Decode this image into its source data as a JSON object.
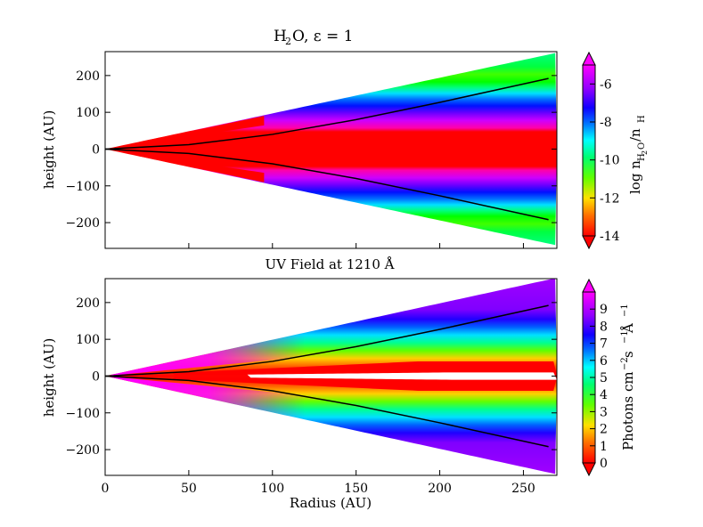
{
  "chart_data": [
    {
      "type": "heatmap",
      "title_main": "H",
      "title_sub": "2",
      "title_rest": "O, ε = 1",
      "xlabel": "",
      "ylabel": "height (AU)",
      "xlim": [
        0,
        270
      ],
      "ylim": [
        -270,
        265
      ],
      "yticks": [
        200,
        100,
        0,
        -100,
        -200
      ],
      "ytick_labels": [
        "200",
        "100",
        "0",
        "−100",
        "−200"
      ],
      "colorbar": {
        "label": "log n_H2O / n_H",
        "label_main": "log n",
        "label_sub": "H",
        "label_subsub": "2",
        "label_mid": "O",
        "label_slash": "/n",
        "label_end": "H",
        "range": [
          -14,
          -5
        ],
        "ticks": [
          -6,
          -8,
          -10,
          -12,
          -14
        ],
        "tick_labels": [
          "-6",
          "-8",
          "-10",
          "-12",
          "-14"
        ],
        "colormap": "gist_rainbow (low=red, high=magenta)"
      },
      "boundary_line": {
        "description": "black curve",
        "points": [
          [
            0,
            0
          ],
          [
            50,
            12
          ],
          [
            100,
            40
          ],
          [
            150,
            80
          ],
          [
            200,
            127
          ],
          [
            265,
            192
          ]
        ]
      },
      "colors": {
        "high": "#ff00ff",
        "mid_high": "#0033ff",
        "mid": "#00e0ff",
        "mid_low": "#00ff00",
        "low": "#ff0000"
      }
    },
    {
      "type": "heatmap",
      "title": "UV Field at 1210 Å",
      "xlabel": "Radius (AU)",
      "ylabel": "height (AU)",
      "xlim": [
        0,
        270
      ],
      "ylim": [
        -270,
        265
      ],
      "xticks": [
        0,
        50,
        100,
        150,
        200,
        250
      ],
      "xtick_labels": [
        "0",
        "50",
        "100",
        "150",
        "200",
        "250"
      ],
      "yticks": [
        200,
        100,
        0,
        -100,
        -200
      ],
      "ytick_labels": [
        "200",
        "100",
        "0",
        "−100",
        "−200"
      ],
      "colorbar": {
        "label": "Photons cm⁻² s⁻¹ Å⁻¹",
        "label_text": "Photons cm",
        "label_exp1": "−2",
        "label_s": " s",
        "label_exp2": "−1",
        "label_A": " Å",
        "label_exp3": "−1",
        "range": [
          0,
          10
        ],
        "ticks": [
          9,
          8,
          7,
          6,
          5,
          4,
          3,
          2,
          1,
          0
        ],
        "tick_labels": [
          "9",
          "8",
          "7",
          "6",
          "5",
          "4",
          "3",
          "2",
          "1",
          "0"
        ],
        "colormap": "gist_rainbow (low=red, high=magenta)"
      },
      "boundary_line": {
        "description": "black curve",
        "points": [
          [
            0,
            0
          ],
          [
            50,
            12
          ],
          [
            100,
            40
          ],
          [
            150,
            80
          ],
          [
            200,
            127
          ],
          [
            265,
            192
          ]
        ]
      },
      "colors": {
        "outer": "#aa00ff",
        "inner_left": "#ff00ff",
        "midplane": "#ff0000",
        "gap": "#ffffff"
      }
    }
  ]
}
